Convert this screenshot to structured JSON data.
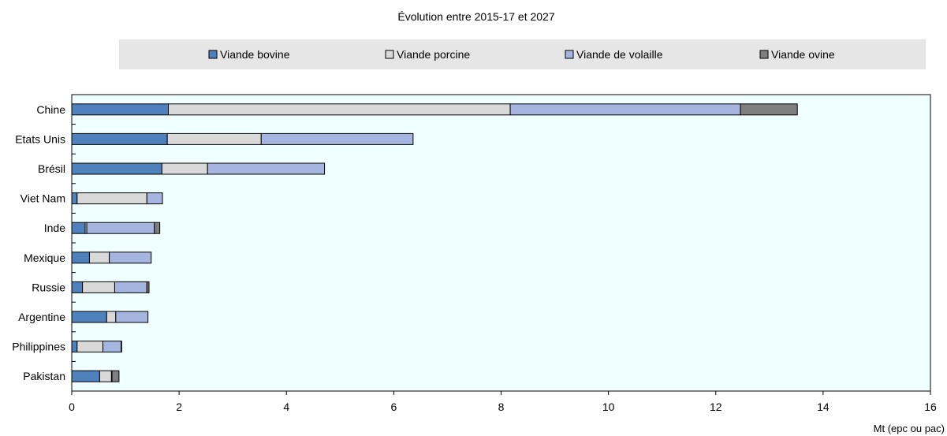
{
  "chart_data": {
    "type": "bar",
    "orientation": "horizontal",
    "stacked": true,
    "title": "Évolution entre 2015-17 et 2027",
    "xlabel": "Mt (epc ou pac)",
    "ylabel": "",
    "xlim": [
      0,
      16
    ],
    "xticks": [
      0,
      2,
      4,
      6,
      8,
      10,
      12,
      14,
      16
    ],
    "grid": false,
    "legend_position": "top",
    "plot_background": "#f0ffff",
    "categories": [
      "Chine",
      "Etats Unis",
      "Brésil",
      "Viet Nam",
      "Inde",
      "Mexique",
      "Russie",
      "Argentine",
      "Philippines",
      "Pakistan"
    ],
    "series": [
      {
        "name": "Viande bovine",
        "color": "#4f81bd",
        "values": [
          1.8,
          1.78,
          1.68,
          0.1,
          0.25,
          0.33,
          0.2,
          0.65,
          0.1,
          0.52
        ]
      },
      {
        "name": "Viande porcine",
        "color": "#d9d9d9",
        "values": [
          6.37,
          1.75,
          0.85,
          1.3,
          0.03,
          0.37,
          0.6,
          0.17,
          0.48,
          0.22
        ]
      },
      {
        "name": "Viande de volaille",
        "color": "#a6b4e0",
        "values": [
          4.29,
          2.83,
          2.18,
          0.29,
          1.26,
          0.78,
          0.6,
          0.6,
          0.34,
          0.01
        ]
      },
      {
        "name": "Viande ovine",
        "color": "#7f7f7f",
        "values": [
          1.06,
          0.0,
          0.0,
          0.0,
          0.1,
          0.0,
          0.04,
          0.0,
          0.01,
          0.13
        ]
      }
    ]
  }
}
